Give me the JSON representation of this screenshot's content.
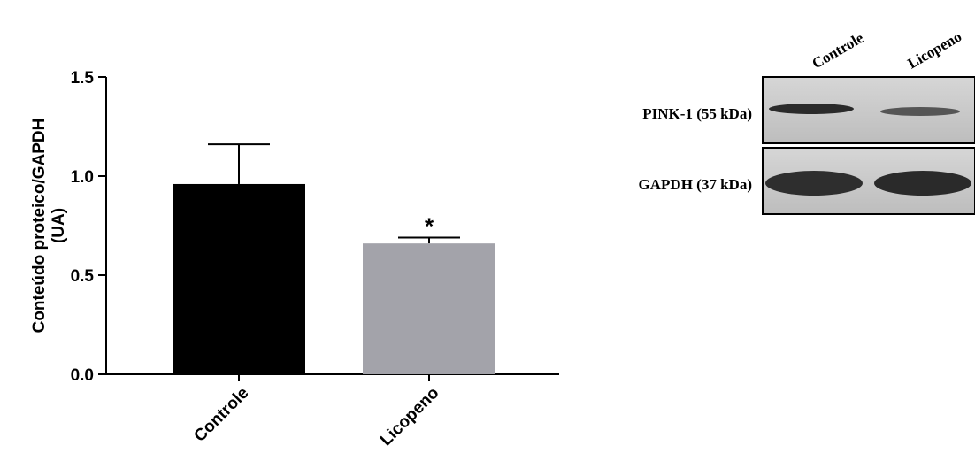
{
  "chart_data": {
    "type": "bar",
    "ylabel": [
      "Conteúdo proteico/GAPDH",
      "(UA)"
    ],
    "categories": [
      "Controle",
      "Licopeno"
    ],
    "values": [
      0.96,
      0.66
    ],
    "errors": [
      0.2,
      0.03
    ],
    "colors": [
      "#000000",
      "#a3a3aa"
    ],
    "annotation": "*",
    "ylim": [
      0,
      1.5
    ],
    "yticks": [
      {
        "value": 0,
        "label": "0.0"
      },
      0.5,
      {
        "value": 1,
        "label": "1.0"
      },
      1.5
    ]
  },
  "blot": {
    "lanes": [
      "Controle",
      "Licopeno"
    ],
    "rows": [
      "PINK-1 (55 kDa)",
      "GAPDH (37 kDa)"
    ]
  }
}
